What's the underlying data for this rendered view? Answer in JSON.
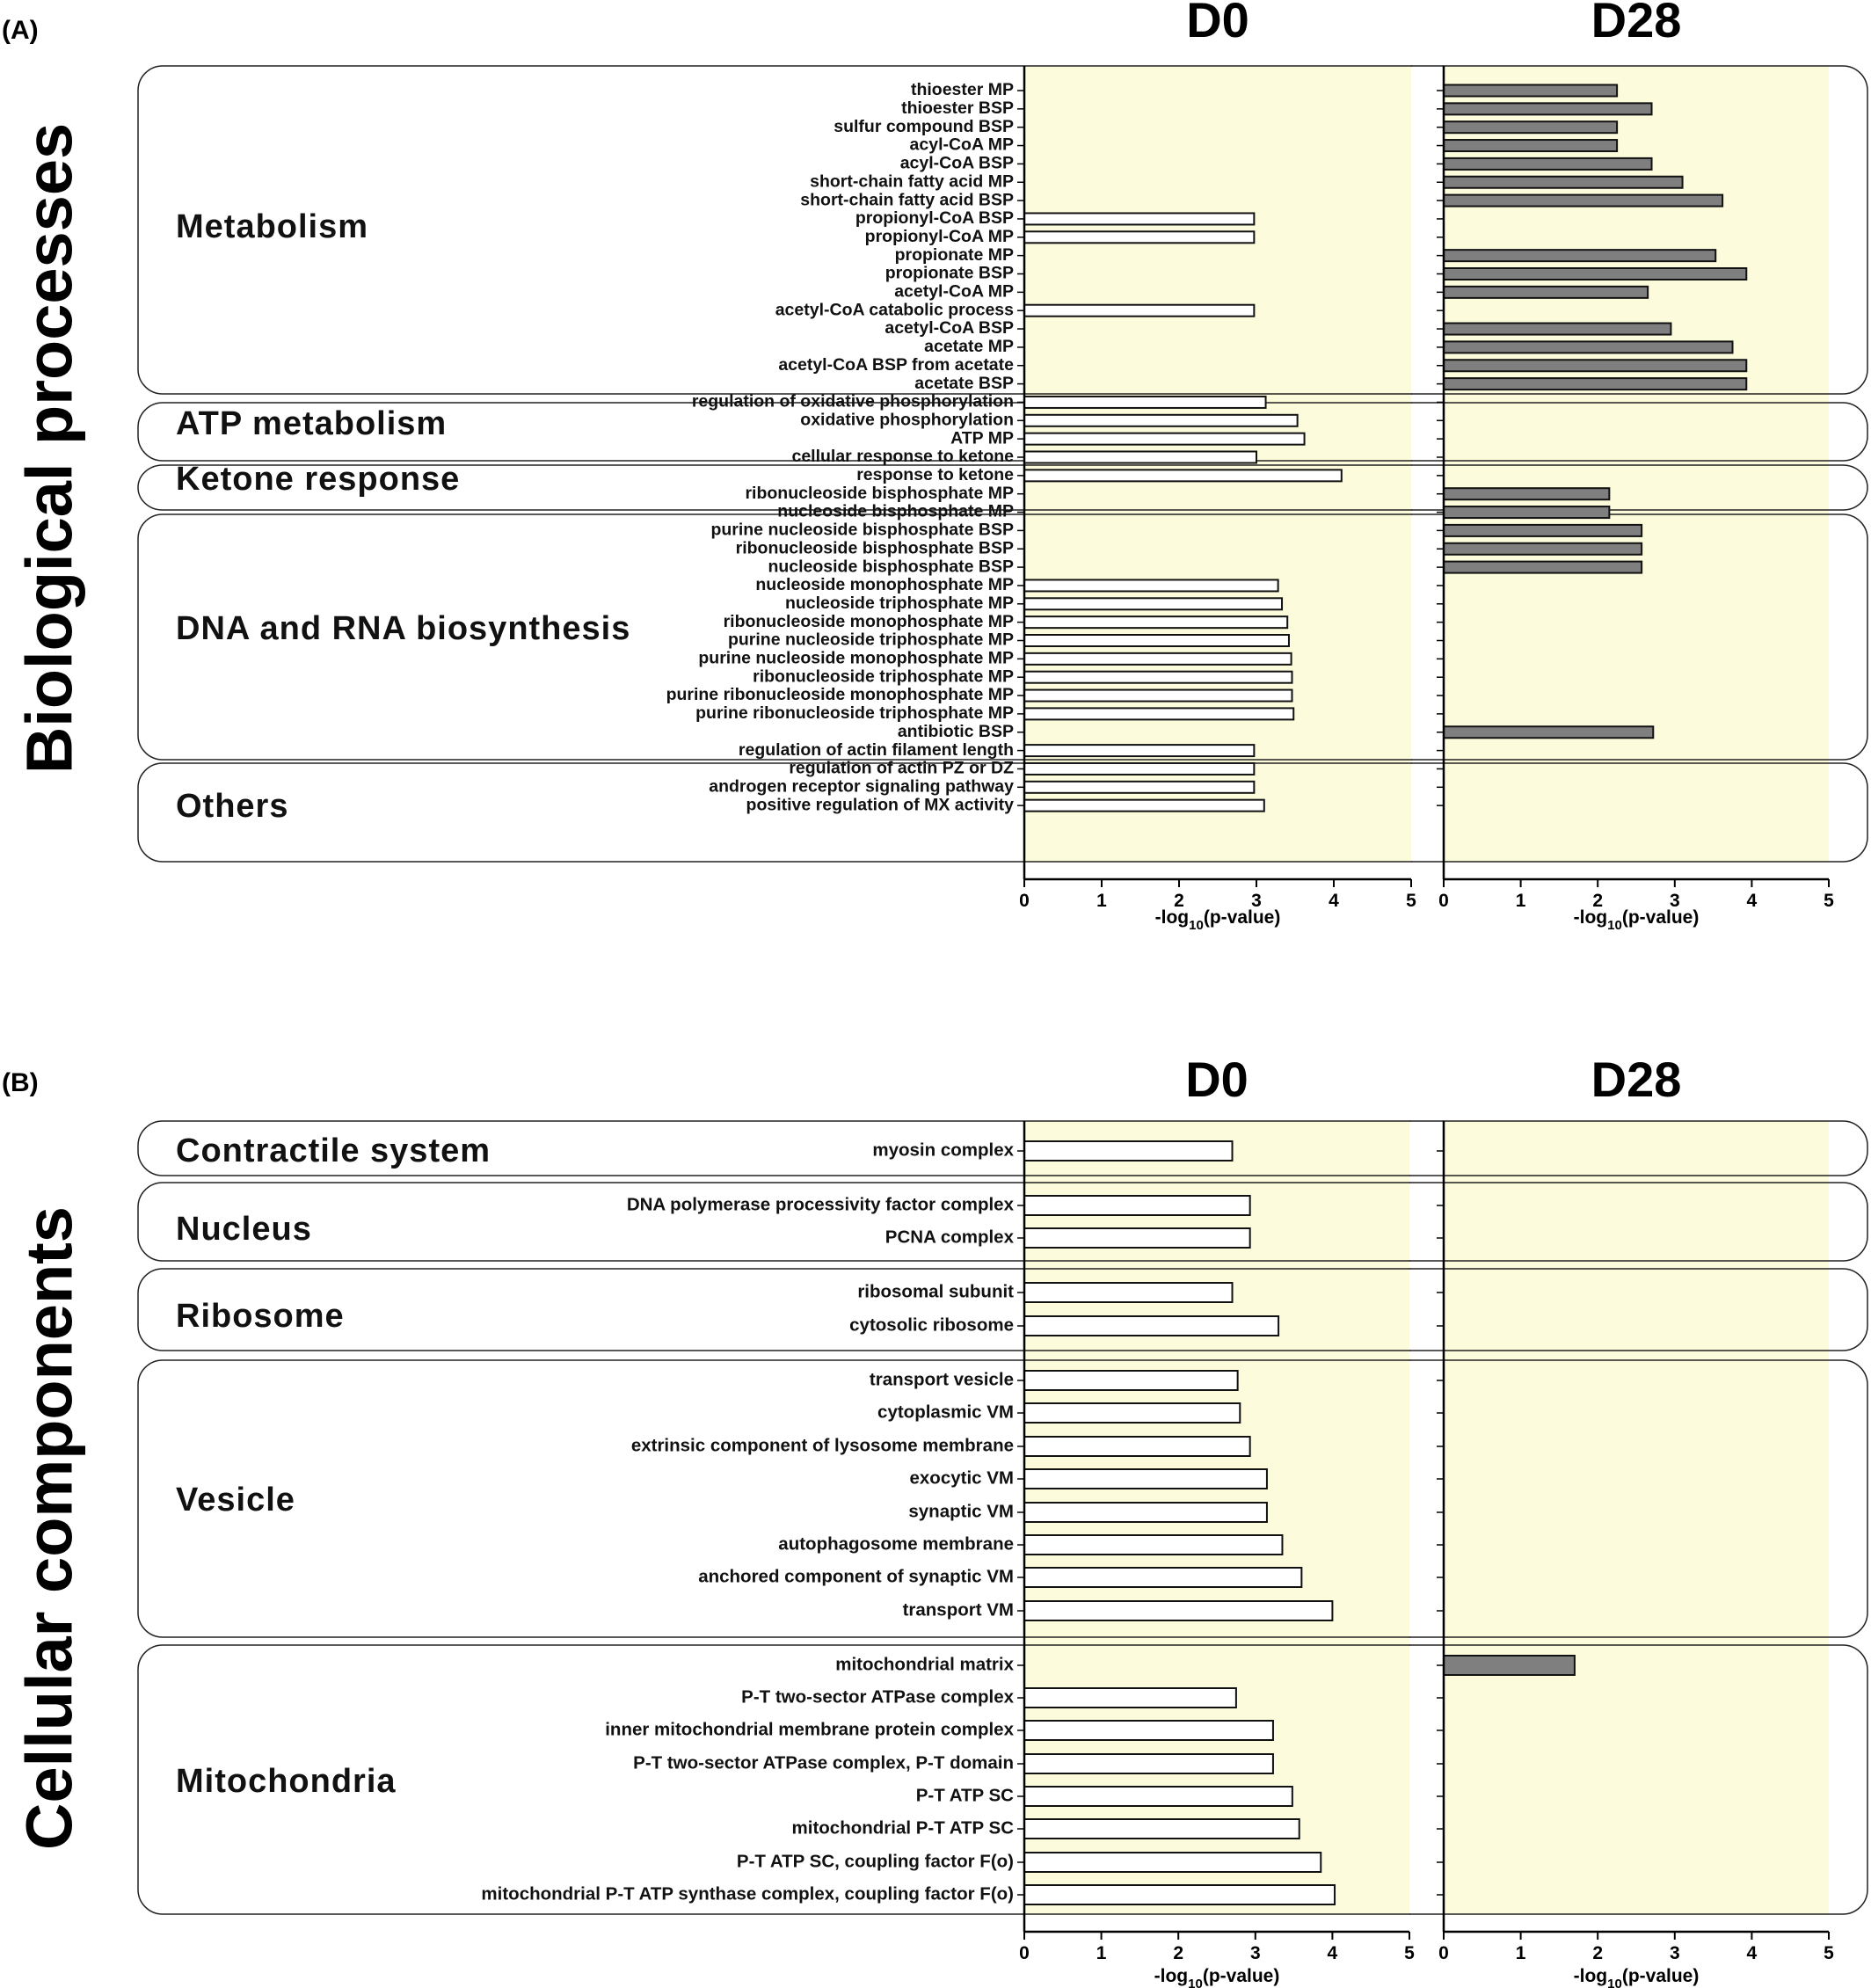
{
  "chart_data": [
    {
      "panel": "(A)",
      "title": "Biological processes",
      "type": "bar",
      "orientation": "horizontal",
      "columns": [
        "D0",
        "D28"
      ],
      "xlabel": "-log10(p-value)",
      "xlabel_parts": {
        "pre": "-log",
        "sub": "10",
        "post": "(p-value)"
      },
      "xlim": [
        0,
        5
      ],
      "xticks": [
        "0",
        "1",
        "2",
        "3",
        "4",
        "5"
      ],
      "groups": [
        {
          "name": "Metabolism",
          "terms": [
            {
              "label": "thioester MP",
              "D0": null,
              "D28": 2.25
            },
            {
              "label": "thioester BSP",
              "D0": null,
              "D28": 2.7
            },
            {
              "label": "sulfur compound BSP",
              "D0": null,
              "D28": 2.25
            },
            {
              "label": "acyl-CoA MP",
              "D0": null,
              "D28": 2.25
            },
            {
              "label": "acyl-CoA BSP",
              "D0": null,
              "D28": 2.7
            },
            {
              "label": "short-chain fatty acid MP",
              "D0": null,
              "D28": 3.1
            },
            {
              "label": "short-chain fatty acid BSP",
              "D0": null,
              "D28": 3.62
            },
            {
              "label": "propionyl-CoA BSP",
              "D0": 2.97,
              "D28": null
            },
            {
              "label": "propionyl-CoA MP",
              "D0": 2.97,
              "D28": null
            },
            {
              "label": "propionate MP",
              "D0": null,
              "D28": 3.53
            },
            {
              "label": "propionate BSP",
              "D0": null,
              "D28": 3.93
            },
            {
              "label": "acetyl-CoA MP",
              "D0": null,
              "D28": 2.65
            },
            {
              "label": "acetyl-CoA catabolic process",
              "D0": 2.97,
              "D28": null
            },
            {
              "label": "acetyl-CoA BSP",
              "D0": null,
              "D28": 2.95
            },
            {
              "label": "acetate MP",
              "D0": null,
              "D28": 3.75
            },
            {
              "label": "acetyl-CoA BSP from acetate",
              "D0": null,
              "D28": 3.93
            },
            {
              "label": "acetate BSP",
              "D0": null,
              "D28": 3.93
            }
          ]
        },
        {
          "name": "ATP metabolism",
          "terms": [
            {
              "label": "regulation of oxidative phosphorylation",
              "D0": 3.12,
              "D28": null
            },
            {
              "label": "oxidative phosphorylation",
              "D0": 3.53,
              "D28": null
            },
            {
              "label": "ATP MP",
              "D0": 3.62,
              "D28": null
            }
          ]
        },
        {
          "name": "Ketone response",
          "terms": [
            {
              "label": "cellular response to ketone",
              "D0": 3.0,
              "D28": null
            },
            {
              "label": "response to ketone",
              "D0": 4.1,
              "D28": null
            }
          ]
        },
        {
          "name": "DNA and RNA biosynthesis",
          "terms": [
            {
              "label": "ribonucleoside bisphosphate MP",
              "D0": null,
              "D28": 2.15
            },
            {
              "label": "nucleoside bisphosphate MP",
              "D0": null,
              "D28": 2.15
            },
            {
              "label": "purine nucleoside bisphosphate BSP",
              "D0": null,
              "D28": 2.57
            },
            {
              "label": "ribonucleoside bisphosphate BSP",
              "D0": null,
              "D28": 2.57
            },
            {
              "label": "nucleoside bisphosphate BSP",
              "D0": null,
              "D28": 2.57
            },
            {
              "label": "nucleoside monophosphate MP",
              "D0": 3.28,
              "D28": null
            },
            {
              "label": "nucleoside triphosphate MP",
              "D0": 3.33,
              "D28": null
            },
            {
              "label": "ribonucleoside monophosphate MP",
              "D0": 3.4,
              "D28": null
            },
            {
              "label": "purine nucleoside triphosphate MP",
              "D0": 3.42,
              "D28": null
            },
            {
              "label": "purine nucleoside monophosphate MP",
              "D0": 3.45,
              "D28": null
            },
            {
              "label": "ribonucleoside triphosphate MP",
              "D0": 3.46,
              "D28": null
            },
            {
              "label": "purine ribonucleoside monophosphate MP",
              "D0": 3.46,
              "D28": null
            },
            {
              "label": "purine ribonucleoside triphosphate MP",
              "D0": 3.48,
              "D28": null
            }
          ]
        },
        {
          "name": "Others",
          "terms": [
            {
              "label": "antibiotic BSP",
              "D0": null,
              "D28": 2.72
            },
            {
              "label": "regulation of actin filament length",
              "D0": 2.97,
              "D28": null
            },
            {
              "label": "regulation of actin PZ or DZ",
              "D0": 2.97,
              "D28": null
            },
            {
              "label": "androgen receptor signaling pathway",
              "D0": 2.97,
              "D28": null
            },
            {
              "label": "positive regulation of MX activity",
              "D0": 3.1,
              "D28": null
            }
          ]
        }
      ]
    },
    {
      "panel": "(B)",
      "title": "Cellular components",
      "type": "bar",
      "orientation": "horizontal",
      "columns": [
        "D0",
        "D28"
      ],
      "xlabel": "-log10(p-value)",
      "xlabel_parts": {
        "pre": "-log",
        "sub": "10",
        "post": "(p-value)"
      },
      "xlim": [
        0,
        5
      ],
      "xticks": [
        "0",
        "1",
        "2",
        "3",
        "4",
        "5"
      ],
      "groups": [
        {
          "name": "Contractile system",
          "terms": [
            {
              "label": "myosin complex",
              "D0": 2.7,
              "D28": null
            }
          ]
        },
        {
          "name": "Nucleus",
          "terms": [
            {
              "label": "DNA polymerase processivity factor complex",
              "D0": 2.93,
              "D28": null
            },
            {
              "label": "PCNA complex",
              "D0": 2.93,
              "D28": null
            }
          ]
        },
        {
          "name": "Ribosome",
          "terms": [
            {
              "label": "ribosomal subunit",
              "D0": 2.7,
              "D28": null
            },
            {
              "label": "cytosolic ribosome",
              "D0": 3.3,
              "D28": null
            }
          ]
        },
        {
          "name": "Vesicle",
          "terms": [
            {
              "label": "transport vesicle",
              "D0": 2.77,
              "D28": null
            },
            {
              "label": "cytoplasmic VM",
              "D0": 2.8,
              "D28": null
            },
            {
              "label": "extrinsic component of lysosome membrane",
              "D0": 2.93,
              "D28": null
            },
            {
              "label": "exocytic VM",
              "D0": 3.15,
              "D28": null
            },
            {
              "label": "synaptic VM",
              "D0": 3.15,
              "D28": null
            },
            {
              "label": "autophagosome membrane",
              "D0": 3.35,
              "D28": null
            },
            {
              "label": "anchored component of synaptic VM",
              "D0": 3.6,
              "D28": null
            },
            {
              "label": "transport VM",
              "D0": 4.0,
              "D28": null
            }
          ]
        },
        {
          "name": "Mitochondria",
          "terms": [
            {
              "label": "mitochondrial matrix",
              "D0": null,
              "D28": 1.7
            },
            {
              "label": "P-T two-sector ATPase complex",
              "D0": 2.75,
              "D28": null
            },
            {
              "label": "inner mitochondrial membrane protein complex",
              "D0": 3.23,
              "D28": null
            },
            {
              "label": "P-T two-sector ATPase complex, P-T domain",
              "D0": 3.23,
              "D28": null
            },
            {
              "label": "P-T ATP SC",
              "D0": 3.48,
              "D28": null
            },
            {
              "label": "mitochondrial P-T ATP SC",
              "D0": 3.57,
              "D28": null
            },
            {
              "label": "P-T ATP SC, coupling factor F(o)",
              "D0": 3.85,
              "D28": null
            },
            {
              "label": "mitochondrial P-T ATP synthase complex, coupling factor F(o)",
              "D0": 4.03,
              "D28": null
            }
          ]
        }
      ]
    }
  ],
  "colors": {
    "background_band": "#fcfbdc",
    "d0_bar_fill": "#ffffff",
    "d28_bar_fill": "#7f7f7f",
    "stroke": "#111111"
  }
}
